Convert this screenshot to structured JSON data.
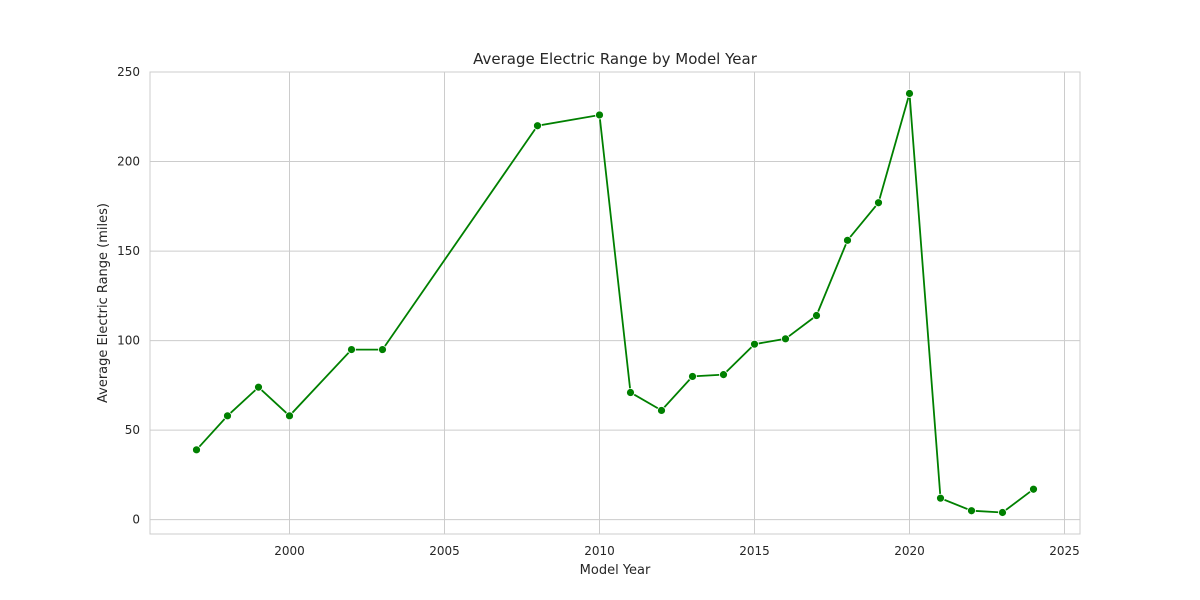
{
  "chart_data": {
    "type": "line",
    "title": "Average Electric Range by Model Year",
    "xlabel": "Model Year",
    "ylabel": "Average Electric Range (miles)",
    "xlim": [
      1995.5,
      2025.5
    ],
    "ylim": [
      -8,
      250
    ],
    "xticks": [
      2000,
      2005,
      2010,
      2015,
      2020,
      2025
    ],
    "yticks": [
      0,
      50,
      100,
      150,
      200,
      250
    ],
    "grid": true,
    "series": [
      {
        "color": "#008000",
        "marker": "circle",
        "x": [
          1997,
          1998,
          1999,
          2000,
          2002,
          2003,
          2008,
          2010,
          2011,
          2012,
          2013,
          2014,
          2015,
          2016,
          2017,
          2018,
          2019,
          2020,
          2021,
          2022,
          2023,
          2024
        ],
        "y": [
          39,
          58,
          74,
          58,
          95,
          95,
          220,
          226,
          71,
          61,
          80,
          81,
          98,
          101,
          114,
          156,
          177,
          238,
          12,
          5,
          4,
          17
        ]
      }
    ]
  }
}
